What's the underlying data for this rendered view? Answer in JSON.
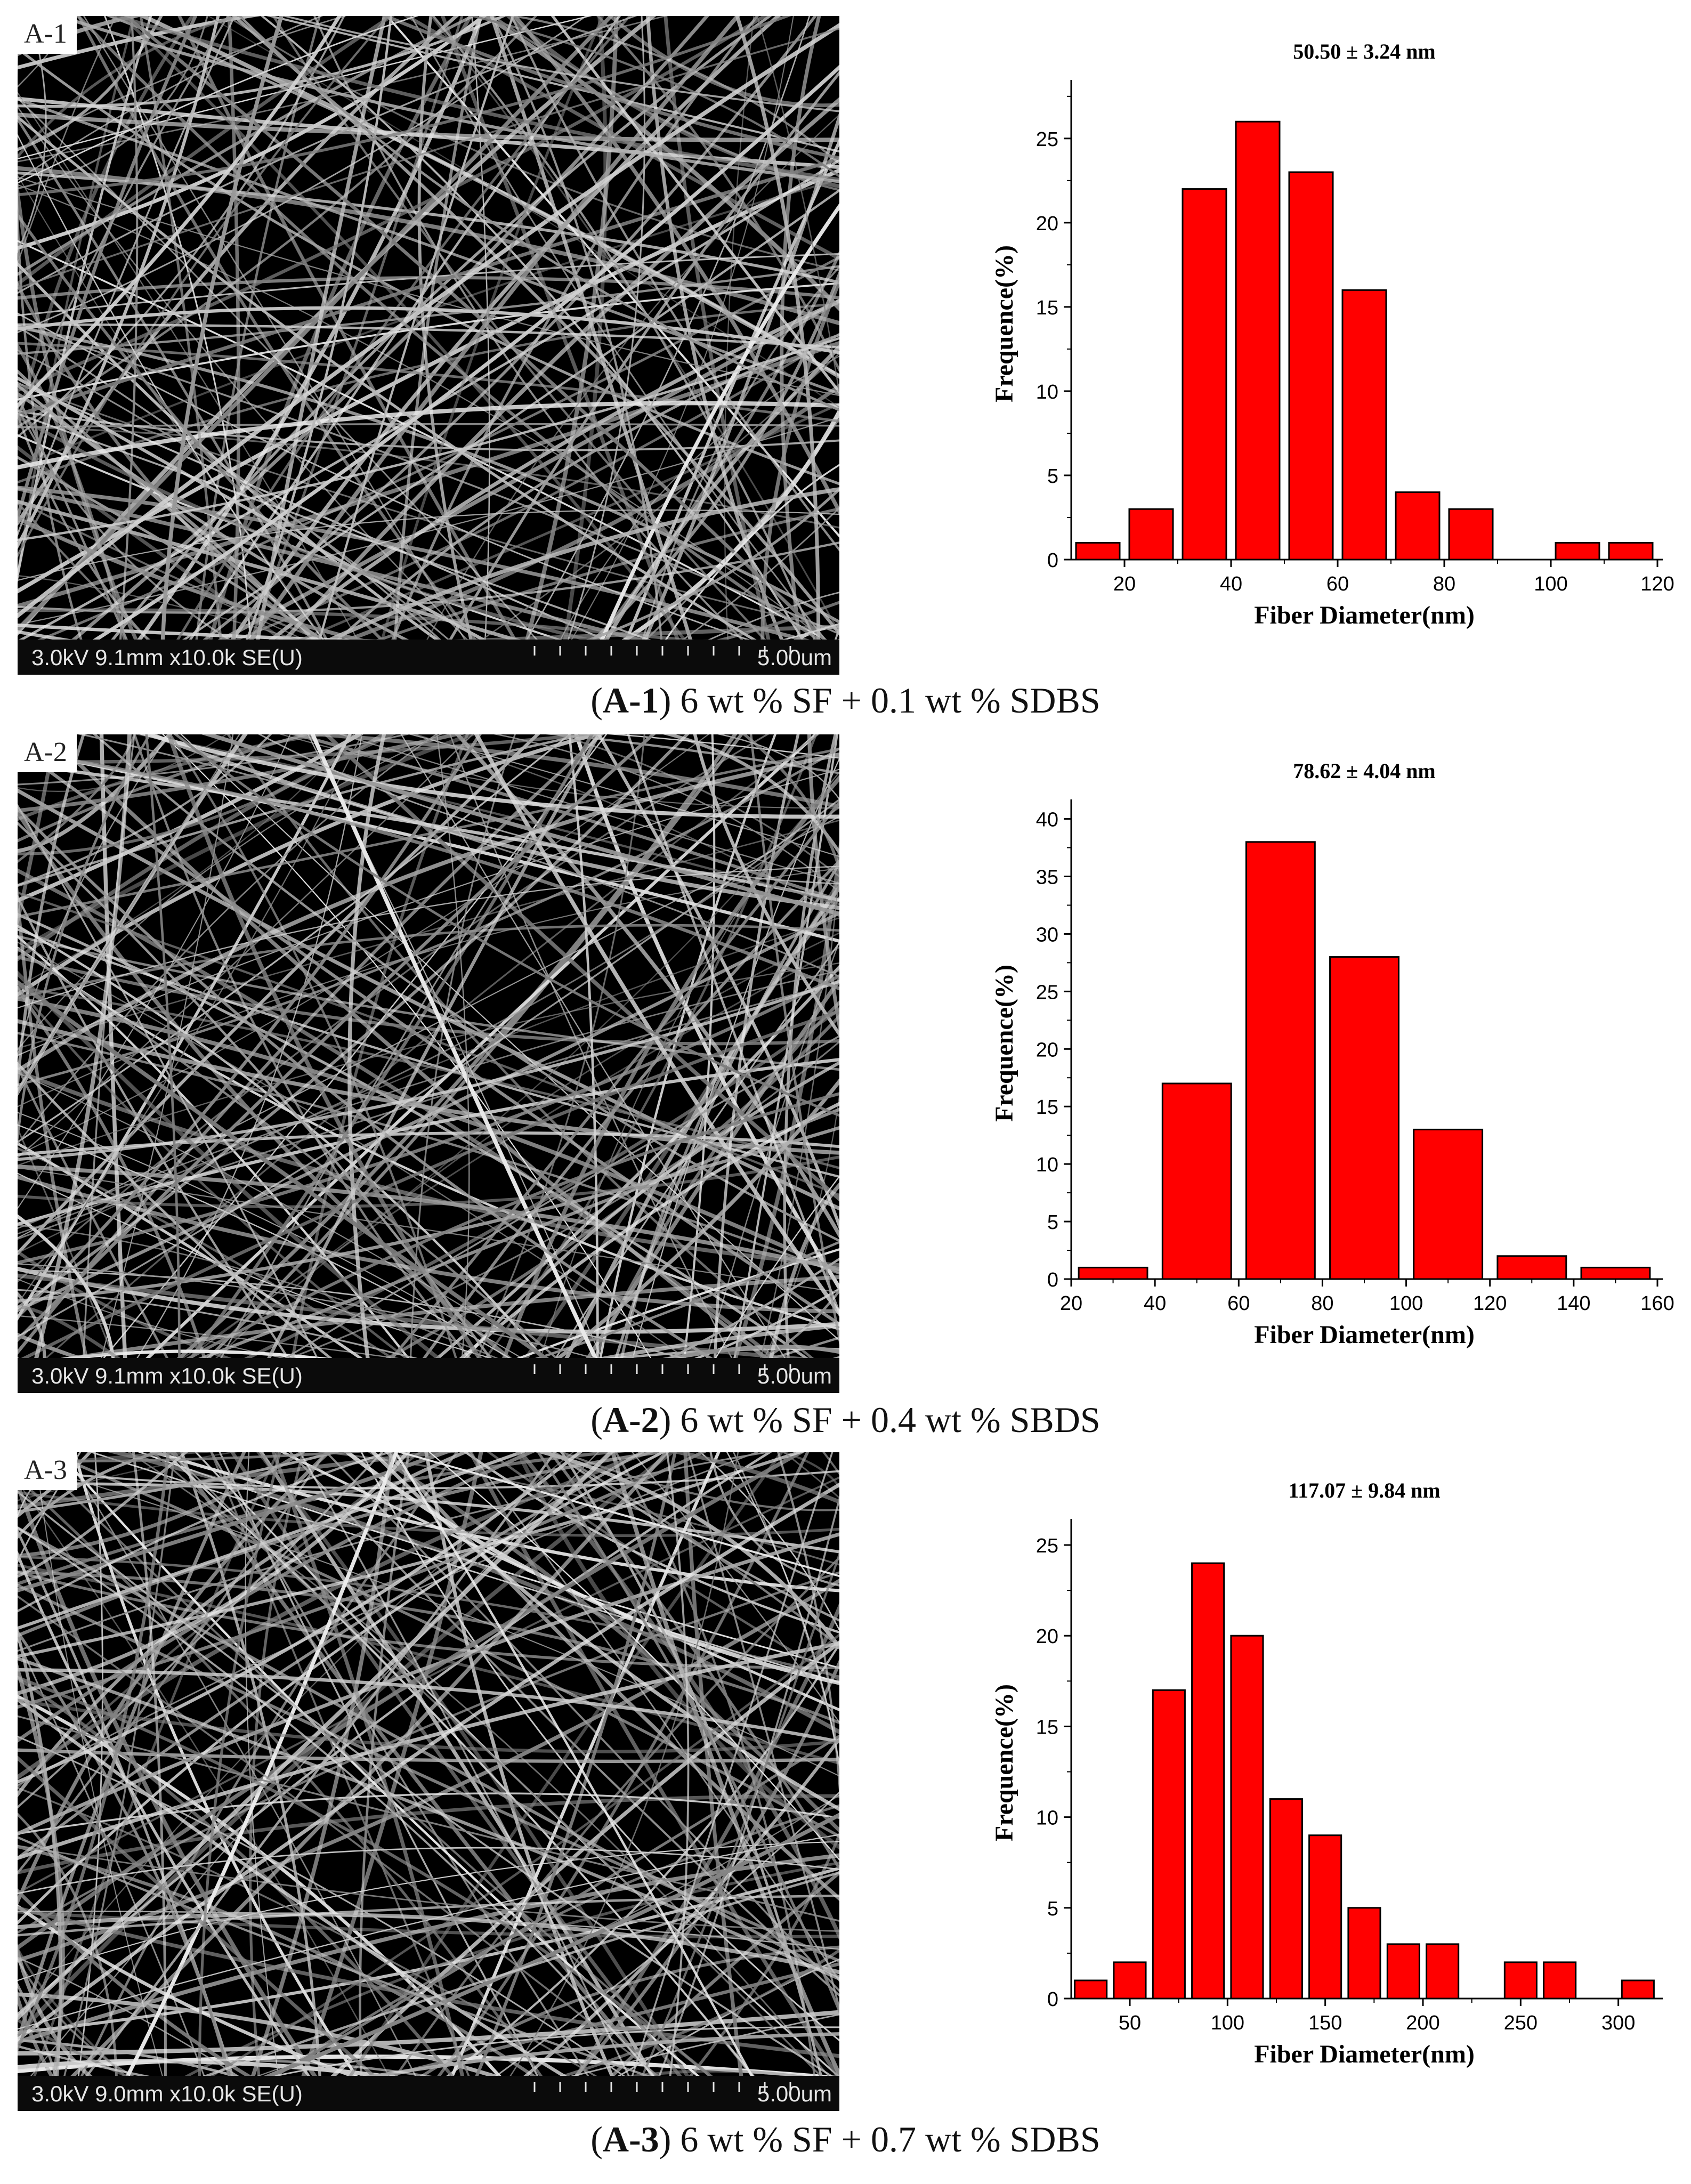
{
  "panels": [
    {
      "sem": {
        "label": "A-1",
        "info": "3.0kV 9.1mm x10.0k SE(U)",
        "scale": "5.00um"
      },
      "caption": {
        "open": "(",
        "id": "A-1",
        "rest": ") 6 wt % SF + 0.1 wt % SDBS"
      }
    },
    {
      "sem": {
        "label": "A-2",
        "info": "3.0kV 9.1mm x10.0k SE(U)",
        "scale": "5.00um"
      },
      "caption": {
        "open": "(",
        "id": "A-2",
        "rest": ") 6 wt % SF + 0.4 wt % SBDS"
      }
    },
    {
      "sem": {
        "label": "A-3",
        "info": "3.0kV 9.0mm x10.0k SE(U)",
        "scale": "5.00um"
      },
      "caption": {
        "open": "(",
        "id": "A-3",
        "rest": ") 6 wt % SF + 0.7 wt % SDBS"
      }
    }
  ],
  "colors": {
    "bar": "#ff0000",
    "bar_edge": "#000000"
  },
  "chart_data": [
    {
      "type": "bar",
      "title": "50.50 ± 3.24 nm",
      "xlabel": "Fiber Diameter(nm)",
      "ylabel": "Frequence(%)",
      "bin_width": 10,
      "x": [
        15,
        25,
        35,
        45,
        55,
        65,
        75,
        85,
        95,
        105,
        115
      ],
      "values": [
        1,
        3,
        22,
        26,
        23,
        16,
        4,
        3,
        0,
        1,
        1
      ],
      "xlim": [
        10,
        120
      ],
      "ylim": [
        0,
        28
      ],
      "xticks": [
        20,
        40,
        60,
        80,
        100,
        120
      ],
      "yticks": [
        0,
        5,
        10,
        15,
        20,
        25
      ]
    },
    {
      "type": "bar",
      "title": "78.62 ± 4.04 nm",
      "xlabel": "Fiber Diameter(nm)",
      "ylabel": "Frequence(%)",
      "bin_width": 20,
      "x": [
        30,
        50,
        70,
        90,
        110,
        130,
        150
      ],
      "values": [
        1,
        17,
        38,
        28,
        13,
        2,
        1
      ],
      "xlim": [
        20,
        160
      ],
      "ylim": [
        0,
        41
      ],
      "xticks": [
        20,
        40,
        60,
        80,
        100,
        120,
        140,
        160
      ],
      "yticks": [
        0,
        5,
        10,
        15,
        20,
        25,
        30,
        35,
        40
      ]
    },
    {
      "type": "bar",
      "title": "117.07 ± 9.84 nm",
      "xlabel": "Fiber Diameter(nm)",
      "ylabel": "Frequence(%)",
      "bin_width": 20,
      "x": [
        30,
        50,
        70,
        90,
        110,
        130,
        150,
        170,
        190,
        210,
        230,
        250,
        270,
        290,
        310
      ],
      "values": [
        1,
        2,
        17,
        24,
        20,
        11,
        9,
        5,
        3,
        3,
        0,
        2,
        2,
        0,
        1
      ],
      "xlim": [
        20,
        320
      ],
      "ylim": [
        0,
        26
      ],
      "xticks": [
        50,
        100,
        150,
        200,
        250,
        300
      ],
      "yticks": [
        0,
        5,
        10,
        15,
        20,
        25
      ]
    }
  ]
}
